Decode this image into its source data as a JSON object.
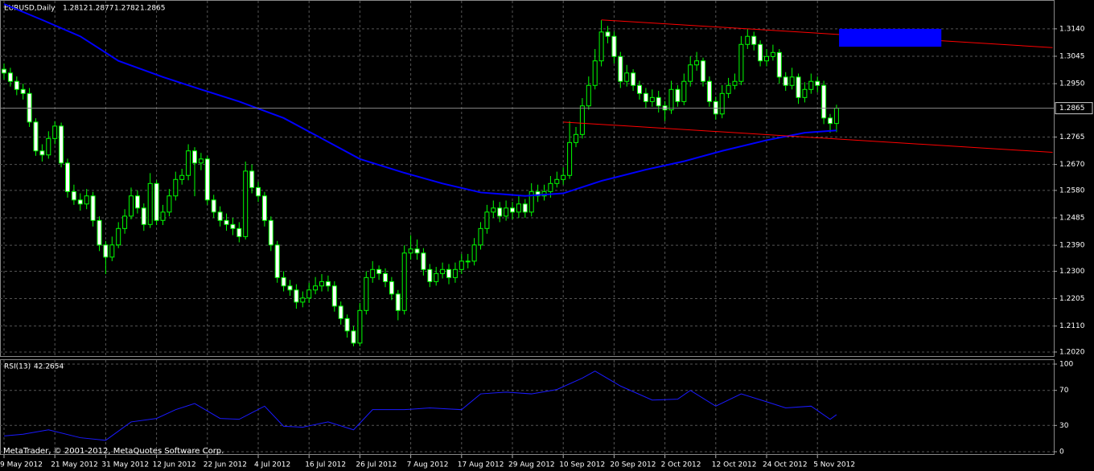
{
  "chart_data": {
    "type": "candlestick",
    "symbol": "EURUSD,Daily",
    "categories": [
      "9 May 2012",
      null,
      null,
      null,
      null,
      null,
      null,
      null,
      "21 May 2012",
      null,
      null,
      null,
      null,
      null,
      null,
      null,
      "31 May 2012",
      null,
      null,
      null,
      null,
      null,
      null,
      null,
      "12 Jun 2012",
      null,
      null,
      null,
      null,
      null,
      null,
      null,
      "22 Jun 2012",
      null,
      null,
      null,
      null,
      null,
      null,
      null,
      "4 Jul 2012",
      null,
      null,
      null,
      null,
      null,
      null,
      null,
      "16 Jul 2012",
      null,
      null,
      null,
      null,
      null,
      null,
      null,
      "26 Jul 2012",
      null,
      null,
      null,
      null,
      null,
      null,
      null,
      "7 Aug 2012",
      null,
      null,
      null,
      null,
      null,
      null,
      null,
      "17 Aug 2012",
      null,
      null,
      null,
      null,
      null,
      null,
      null,
      "29 Aug 2012",
      null,
      null,
      null,
      null,
      null,
      null,
      null,
      "10 Sep 2012",
      null,
      null,
      null,
      null,
      null,
      null,
      null,
      "20 Sep 2012",
      null,
      null,
      null,
      null,
      null,
      null,
      null,
      "2 Oct 2012",
      null,
      null,
      null,
      null,
      null,
      null,
      null,
      "12 Oct 2012",
      null,
      null,
      null,
      null,
      null,
      null,
      null,
      "24 Oct 2012",
      null,
      null,
      null,
      null,
      null,
      null,
      null,
      "5 Nov 2012",
      null,
      null,
      null
    ],
    "open": [
      1.3,
      1.2987,
      1.2958,
      1.293,
      1.2916,
      1.2817,
      1.2717,
      1.2703,
      1.276,
      1.2803,
      1.2675,
      1.2576,
      1.2547,
      1.2533,
      1.2561,
      1.2476,
      1.2391,
      1.2349,
      1.2391,
      1.2448,
      1.2491,
      1.2561,
      1.2519,
      1.2462,
      1.2604,
      1.2476,
      1.2505,
      1.2561,
      1.2618,
      1.2632,
      1.2717,
      1.2675,
      1.2689,
      1.2547,
      1.2505,
      1.2476,
      1.2462,
      1.2448,
      1.242,
      1.2647,
      1.259,
      1.2561,
      1.2476,
      1.2391,
      1.2278,
      1.2249,
      1.2235,
      1.2193,
      1.2207,
      1.2235,
      1.2249,
      1.2264,
      1.2249,
      1.2179,
      1.2136,
      1.2093,
      1.2051,
      1.2164,
      1.2278,
      1.2306,
      1.2292,
      1.2264,
      1.2221,
      1.2164,
      1.2363,
      1.2377,
      1.2363,
      1.2306,
      1.2264,
      1.2292,
      1.2306,
      1.2278,
      1.2306,
      1.2335,
      1.2335,
      1.2391,
      1.2448,
      1.2505,
      1.2519,
      1.2491,
      1.2519,
      1.2505,
      1.2533,
      1.2505,
      1.2576,
      1.2561,
      1.2576,
      1.2604,
      1.2618,
      1.2632,
      1.2746,
      1.2774,
      1.2873,
      1.2944,
      1.3029,
      1.3129,
      1.3114,
      1.3044,
      1.2958,
      1.2987,
      1.2944,
      1.2916,
      1.2888,
      1.2902,
      1.2873,
      1.2859,
      1.293,
      1.2888,
      1.2958,
      1.3015,
      1.3029,
      1.2958,
      1.2888,
      1.2845,
      1.2916,
      1.2944,
      1.2958,
      1.3086,
      1.3114,
      1.3086,
      1.3029,
      1.3044,
      1.3058,
      1.2973,
      1.2944,
      1.2973,
      1.2902,
      1.293,
      1.2958,
      1.2944,
      1.2831,
      1.2812
    ],
    "high": [
      1.302,
      1.3005,
      1.2975,
      1.295,
      1.2935,
      1.283,
      1.274,
      1.2785,
      1.282,
      1.2815,
      1.269,
      1.26,
      1.257,
      1.2585,
      1.2575,
      1.249,
      1.2405,
      1.242,
      1.247,
      1.2515,
      1.259,
      1.258,
      1.2535,
      1.264,
      1.2615,
      1.253,
      1.2585,
      1.2645,
      1.2655,
      1.274,
      1.273,
      1.271,
      1.27,
      1.2565,
      1.2525,
      1.25,
      1.2485,
      1.247,
      1.268,
      1.267,
      1.261,
      1.2575,
      1.249,
      1.2405,
      1.23,
      1.227,
      1.2255,
      1.223,
      1.226,
      1.228,
      1.229,
      1.2285,
      1.2265,
      1.2195,
      1.215,
      1.211,
      1.219,
      1.23,
      1.2335,
      1.232,
      1.231,
      1.228,
      1.2235,
      1.239,
      1.2425,
      1.241,
      1.238,
      1.2325,
      1.2315,
      1.233,
      1.2325,
      1.233,
      1.236,
      1.236,
      1.2415,
      1.247,
      1.253,
      1.2545,
      1.254,
      1.2545,
      1.254,
      1.256,
      1.255,
      1.2605,
      1.26,
      1.26,
      1.263,
      1.2645,
      1.266,
      1.282,
      1.28,
      1.29,
      1.2975,
      1.307,
      1.317,
      1.315,
      1.313,
      1.306,
      1.3015,
      1.3,
      1.296,
      1.2935,
      1.293,
      1.2925,
      1.289,
      1.296,
      1.2945,
      1.2985,
      1.3045,
      1.306,
      1.304,
      1.2975,
      1.2905,
      1.2945,
      1.297,
      1.2985,
      1.3115,
      1.314,
      1.313,
      1.31,
      1.307,
      1.3085,
      1.307,
      1.299,
      1.3005,
      1.2985,
      1.2955,
      1.2985,
      1.2975,
      1.296,
      1.2845,
      1.2877
    ],
    "low": [
      1.2965,
      1.294,
      1.291,
      1.2895,
      1.28,
      1.27,
      1.268,
      1.269,
      1.274,
      1.266,
      1.2555,
      1.253,
      1.251,
      1.2515,
      1.2455,
      1.237,
      1.229,
      1.2335,
      1.238,
      1.243,
      1.248,
      1.25,
      1.244,
      1.245,
      1.246,
      1.246,
      1.249,
      1.2545,
      1.26,
      1.2615,
      1.256,
      1.265,
      1.253,
      1.2485,
      1.2455,
      1.244,
      1.2425,
      1.24,
      1.241,
      1.257,
      1.254,
      1.2455,
      1.237,
      1.226,
      1.223,
      1.2215,
      1.217,
      1.2175,
      1.219,
      1.222,
      1.223,
      1.223,
      1.216,
      1.2115,
      1.207,
      1.204,
      1.204,
      1.215,
      1.226,
      1.227,
      1.2245,
      1.22,
      1.213,
      1.215,
      1.234,
      1.234,
      1.2285,
      1.2245,
      1.225,
      1.2275,
      1.2255,
      1.226,
      1.229,
      1.231,
      1.232,
      1.2375,
      1.243,
      1.2485,
      1.247,
      1.2475,
      1.248,
      1.2485,
      1.2485,
      1.249,
      1.254,
      1.2545,
      1.2555,
      1.259,
      1.26,
      1.262,
      1.273,
      1.276,
      1.286,
      1.293,
      1.301,
      1.309,
      1.302,
      1.2935,
      1.294,
      1.2925,
      1.2895,
      1.2865,
      1.287,
      1.285,
      1.282,
      1.2845,
      1.287,
      1.2875,
      1.294,
      1.2995,
      1.294,
      1.287,
      1.2825,
      1.283,
      1.29,
      1.293,
      1.2945,
      1.307,
      1.3065,
      1.301,
      1.301,
      1.303,
      1.295,
      1.2925,
      1.293,
      1.288,
      1.2885,
      1.2915,
      1.292,
      1.281,
      1.278,
      1.2782
    ],
    "close": [
      1.2987,
      1.2958,
      1.293,
      1.2916,
      1.2817,
      1.2717,
      1.2703,
      1.276,
      1.2803,
      1.2675,
      1.2576,
      1.2547,
      1.2533,
      1.2561,
      1.2476,
      1.2391,
      1.2349,
      1.2391,
      1.2448,
      1.2491,
      1.2561,
      1.2519,
      1.2462,
      1.2604,
      1.2476,
      1.2505,
      1.2561,
      1.2618,
      1.2632,
      1.2717,
      1.2675,
      1.2689,
      1.2547,
      1.2505,
      1.2476,
      1.2462,
      1.2448,
      1.242,
      1.2647,
      1.259,
      1.2561,
      1.2476,
      1.2391,
      1.2278,
      1.2249,
      1.2235,
      1.2193,
      1.2207,
      1.2235,
      1.2249,
      1.2264,
      1.2249,
      1.2179,
      1.2136,
      1.2093,
      1.2051,
      1.2164,
      1.2278,
      1.2306,
      1.2292,
      1.2264,
      1.2221,
      1.2164,
      1.2363,
      1.2377,
      1.2363,
      1.2306,
      1.2264,
      1.2292,
      1.2306,
      1.2278,
      1.2306,
      1.2335,
      1.2335,
      1.2391,
      1.2448,
      1.2505,
      1.2519,
      1.2491,
      1.2519,
      1.2505,
      1.2533,
      1.2505,
      1.2576,
      1.2561,
      1.2576,
      1.2604,
      1.2618,
      1.2632,
      1.2746,
      1.2774,
      1.2873,
      1.2944,
      1.3029,
      1.3129,
      1.3114,
      1.3044,
      1.2958,
      1.2987,
      1.2944,
      1.2916,
      1.2888,
      1.2902,
      1.2873,
      1.2859,
      1.293,
      1.2888,
      1.2958,
      1.3015,
      1.3029,
      1.2958,
      1.2888,
      1.2845,
      1.2916,
      1.2944,
      1.2958,
      1.3086,
      1.3114,
      1.3086,
      1.3029,
      1.3044,
      1.3058,
      1.2973,
      1.2944,
      1.2973,
      1.2902,
      1.293,
      1.2958,
      1.2944,
      1.2831,
      1.2812,
      1.2865
    ],
    "candle_color": "#00ff00",
    "bull_fill": "#000000",
    "bear_fill": "#ffffff",
    "ylim": [
      1.2006,
      1.3226
    ],
    "yticks": [
      {
        "value": 1.314,
        "label": "1.3140"
      },
      1.3045,
      {
        "value": 1.295,
        "label": "1.2950"
      },
      1.2765,
      {
        "value": 1.267,
        "label": "1.2670"
      },
      {
        "value": 1.258,
        "label": "1.2580"
      },
      1.2485,
      {
        "value": 1.239,
        "label": "1.2390"
      },
      {
        "value": 1.23,
        "label": "1.2300"
      },
      1.2205,
      {
        "value": 1.211,
        "label": "1.2110"
      },
      {
        "value": 1.202,
        "label": "1.2020"
      }
    ],
    "grid": true,
    "ma": {
      "color": "#0000ff",
      "x": [
        0,
        6,
        12,
        18,
        25,
        31,
        37,
        44,
        50,
        56,
        63,
        69,
        75,
        82,
        88,
        94,
        101,
        107,
        113,
        120,
        126,
        131
      ],
      "values": [
        1.3226,
        1.3171,
        1.3114,
        1.3029,
        1.2973,
        1.293,
        1.2888,
        1.2831,
        1.276,
        1.2689,
        1.2641,
        1.2604,
        1.2573,
        1.2561,
        1.257,
        1.2613,
        1.2652,
        1.2681,
        1.2717,
        1.2754,
        1.278,
        1.2788
      ]
    },
    "trendlines": [
      {
        "color": "#ff0000",
        "x": [
          94,
          165
        ],
        "values": [
          1.3171,
          1.3075
        ]
      },
      {
        "color": "#ff0000",
        "x": [
          88,
          165
        ],
        "values": [
          1.2817,
          1.2712
        ]
      }
    ],
    "zone": {
      "color": "#0000ff",
      "x": [
        131.4,
        147.5
      ],
      "values": [
        1.314,
        1.3078
      ]
    },
    "rsi": {
      "label": "RSI(13)",
      "color": "#1a1aff",
      "x": [
        0,
        3,
        7,
        12,
        16,
        20,
        24,
        27,
        30,
        34,
        37,
        41,
        44,
        47,
        51,
        55,
        58,
        63,
        67,
        72,
        75,
        79,
        83,
        87,
        91,
        93,
        97,
        102,
        106,
        108,
        112,
        116,
        120,
        123,
        127,
        130,
        131
      ],
      "values": [
        18,
        20,
        25,
        16,
        13,
        34,
        38,
        48,
        55,
        38,
        37,
        52,
        29,
        28,
        34,
        25,
        48,
        48,
        50,
        48,
        66,
        68,
        66,
        71,
        84,
        92,
        75,
        59,
        60,
        70,
        52,
        66,
        57,
        50,
        52,
        37,
        42.2654
      ],
      "ylim": [
        0,
        100
      ],
      "yticks": [
        100,
        70,
        30,
        0
      ]
    },
    "copyright": "MetaTrader, © 2001-2012, MetaQuotes Software Corp."
  }
}
